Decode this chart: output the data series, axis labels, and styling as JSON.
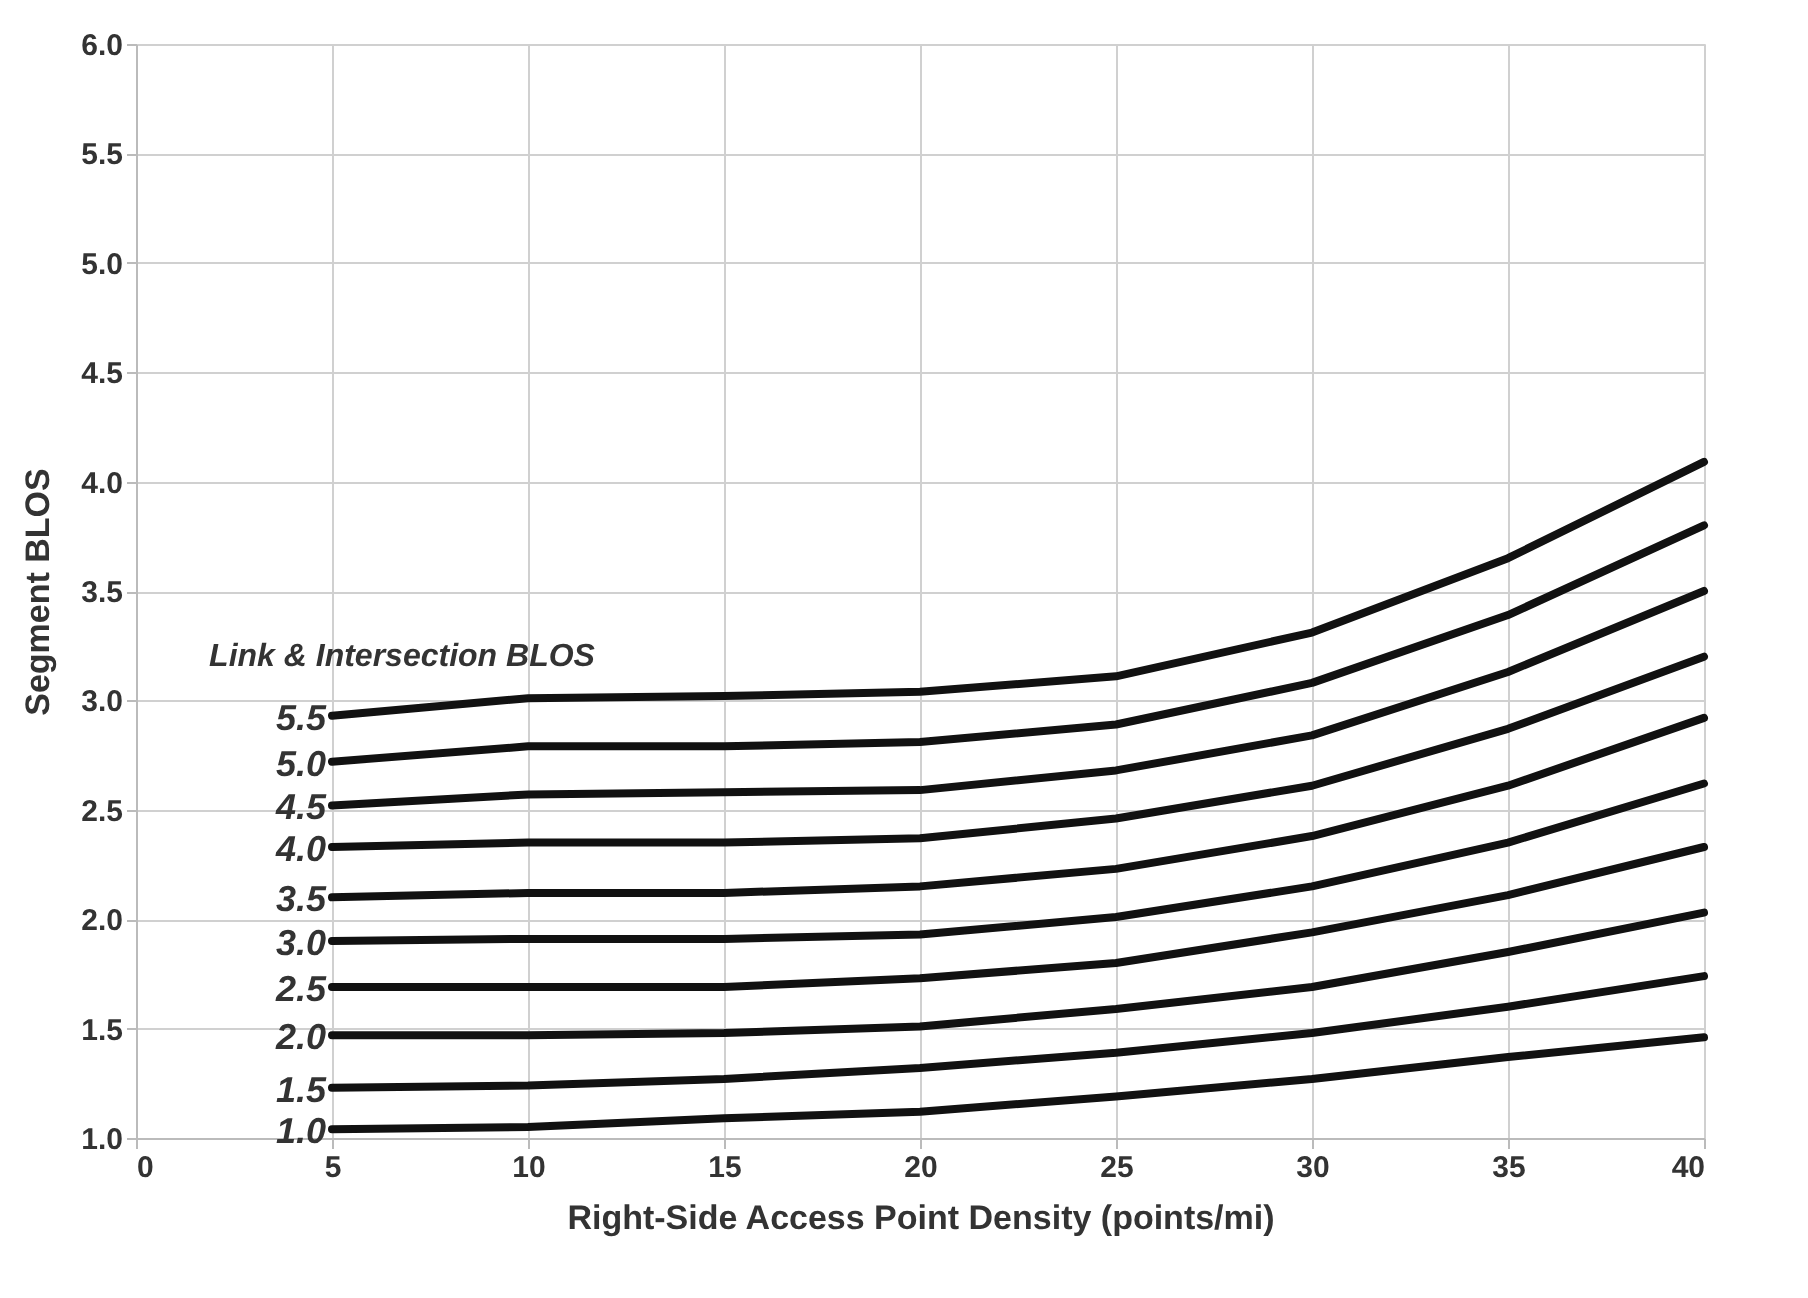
{
  "chart_data": {
    "type": "line",
    "xlabel": "Right-Side Access Point Density (points/mi)",
    "ylabel": "Segment BLOS",
    "legend_title": "Link & Intersection BLOS",
    "x": [
      5,
      10,
      15,
      20,
      25,
      30,
      35,
      40
    ],
    "series": [
      {
        "name": "5.5",
        "color": "#111111",
        "values": [
          2.93,
          3.01,
          3.02,
          3.04,
          3.11,
          3.31,
          3.65,
          4.09
        ]
      },
      {
        "name": "5.0",
        "color": "#111111",
        "values": [
          2.72,
          2.79,
          2.79,
          2.81,
          2.89,
          3.08,
          3.39,
          3.8
        ]
      },
      {
        "name": "4.5",
        "color": "#111111",
        "values": [
          2.52,
          2.57,
          2.58,
          2.59,
          2.68,
          2.84,
          3.13,
          3.5
        ]
      },
      {
        "name": "4.0",
        "color": "#111111",
        "values": [
          2.33,
          2.35,
          2.35,
          2.37,
          2.46,
          2.61,
          2.87,
          3.2
        ]
      },
      {
        "name": "3.5",
        "color": "#111111",
        "values": [
          2.1,
          2.12,
          2.12,
          2.15,
          2.23,
          2.38,
          2.61,
          2.92
        ]
      },
      {
        "name": "3.0",
        "color": "#111111",
        "values": [
          1.9,
          1.91,
          1.91,
          1.93,
          2.01,
          2.15,
          2.35,
          2.62
        ]
      },
      {
        "name": "2.5",
        "color": "#111111",
        "values": [
          1.69,
          1.69,
          1.69,
          1.73,
          1.8,
          1.94,
          2.11,
          2.33
        ]
      },
      {
        "name": "2.0",
        "color": "#111111",
        "values": [
          1.47,
          1.47,
          1.48,
          1.51,
          1.59,
          1.69,
          1.85,
          2.03
        ]
      },
      {
        "name": "1.5",
        "color": "#111111",
        "values": [
          1.23,
          1.24,
          1.27,
          1.32,
          1.39,
          1.48,
          1.6,
          1.74
        ]
      },
      {
        "name": "1.0",
        "color": "#111111",
        "values": [
          1.04,
          1.05,
          1.09,
          1.12,
          1.19,
          1.27,
          1.37,
          1.46
        ]
      }
    ],
    "xlim": [
      0,
      40
    ],
    "xticks": [
      0,
      5,
      10,
      15,
      20,
      25,
      30,
      35,
      40
    ],
    "ylim": [
      1.0,
      6.0
    ],
    "yticks": [
      {
        "value": 1.0,
        "label": "1.0"
      },
      {
        "value": 1.5,
        "label": "1.5"
      },
      {
        "value": 2.0,
        "label": "2.0"
      },
      {
        "value": 2.5,
        "label": "2.5"
      },
      {
        "value": 3.0,
        "label": "3.0"
      },
      {
        "value": 3.5,
        "label": "3.5"
      },
      {
        "value": 4.0,
        "label": "4.0"
      },
      {
        "value": 4.5,
        "label": "4.5"
      },
      {
        "value": 5.0,
        "label": "5.0"
      },
      {
        "value": 5.5,
        "label": "5.5"
      },
      {
        "value": 6.0,
        "label": "6.0"
      }
    ],
    "grid": true,
    "legend": false,
    "marker": "none",
    "line_style": "solid"
  }
}
